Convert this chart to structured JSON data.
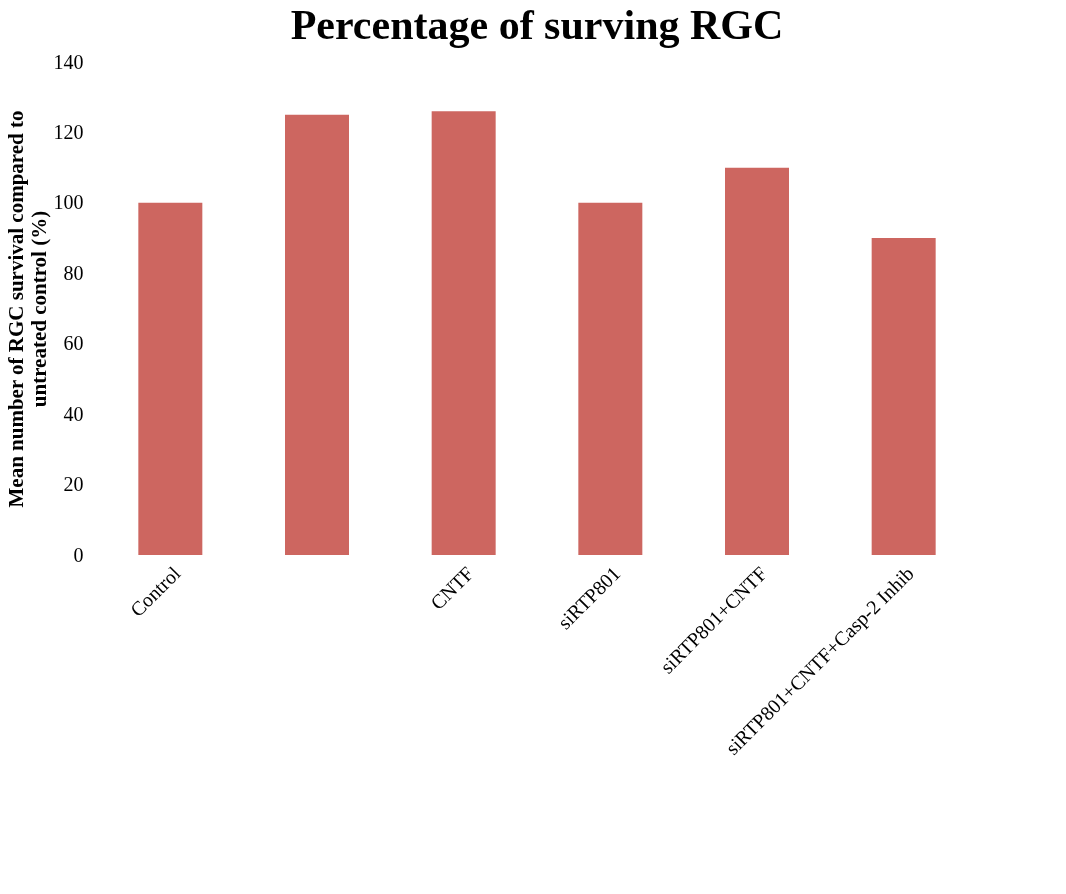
{
  "chart_data": {
    "type": "bar",
    "title": "Percentage of surving RGC",
    "ylabel": "Mean number of RGC survival compared to\nuntreated control (%)",
    "categories": [
      "Control",
      null,
      "CNTF",
      "siRTP801",
      "siRTP801+CNTF",
      "siRTP801+CNTF+Casp-2 Inhib"
    ],
    "values": [
      100,
      125,
      126,
      100,
      110,
      90
    ],
    "color": "#cd6660",
    "ylim": [
      0,
      140
    ],
    "yticks": [
      0,
      20,
      40,
      60,
      80,
      100,
      120,
      140
    ],
    "grid": false
  }
}
